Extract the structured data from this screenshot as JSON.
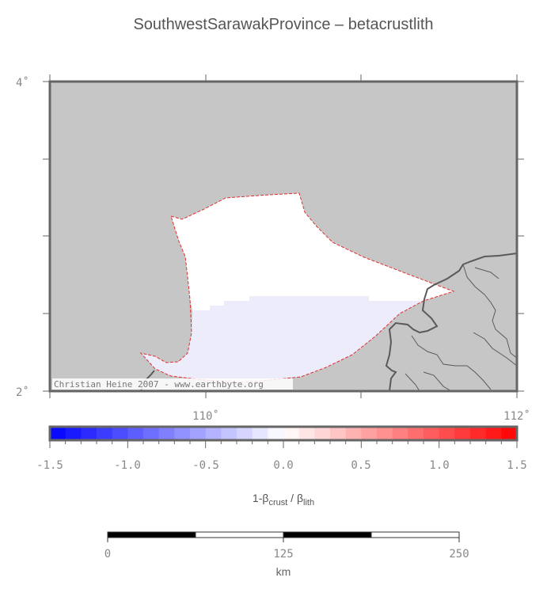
{
  "title": "SouthwestSarawakProvince – betacrustlith",
  "map": {
    "lat_labels": [
      "4˚",
      "2˚"
    ],
    "lon_labels": [
      "110˚",
      "112˚"
    ],
    "credit": "Christian Heine 2007 - www.earthbyte.org",
    "colors": {
      "ocean": "#c6c6c6",
      "region_fill": "#ffffff",
      "region_low": "#ececfb",
      "outline": "#e03030",
      "coast": "#5a5a5a"
    }
  },
  "colorbar": {
    "ticks": [
      "-1.5",
      "-1.0",
      "-0.5",
      "0.0",
      "0.5",
      "1.0",
      "1.5"
    ],
    "label_main": "1-β",
    "label_sub1": "crust",
    "label_sep": " / β",
    "label_sub2": "lith",
    "min": -1.5,
    "max": 1.5,
    "step": 0.1,
    "colors": {
      "negative": "#0000ff",
      "zero": "#ffffff",
      "positive": "#ff0000"
    }
  },
  "scalebar": {
    "ticks": [
      "0",
      "125",
      "250"
    ],
    "unit": "km"
  }
}
